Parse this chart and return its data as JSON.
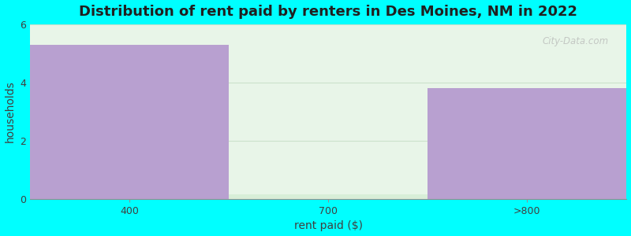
{
  "title": "Distribution of rent paid by renters in Des Moines, NM in 2022",
  "categories": [
    "400",
    "700",
    ">800"
  ],
  "values": [
    5.3,
    0.15,
    3.8
  ],
  "bar_colors": [
    "#B8A0D0",
    "#D8EED8",
    "#B8A0D0"
  ],
  "xlabel": "rent paid ($)",
  "ylabel": "households",
  "ylim": [
    0,
    6
  ],
  "yticks": [
    0,
    2,
    4,
    6
  ],
  "background_color": "#00FFFF",
  "plot_bg_top": "#EAF5EA",
  "plot_bg_bottom": "#E8F0E8",
  "title_fontsize": 13,
  "axis_label_fontsize": 10,
  "watermark": "City-Data.com"
}
